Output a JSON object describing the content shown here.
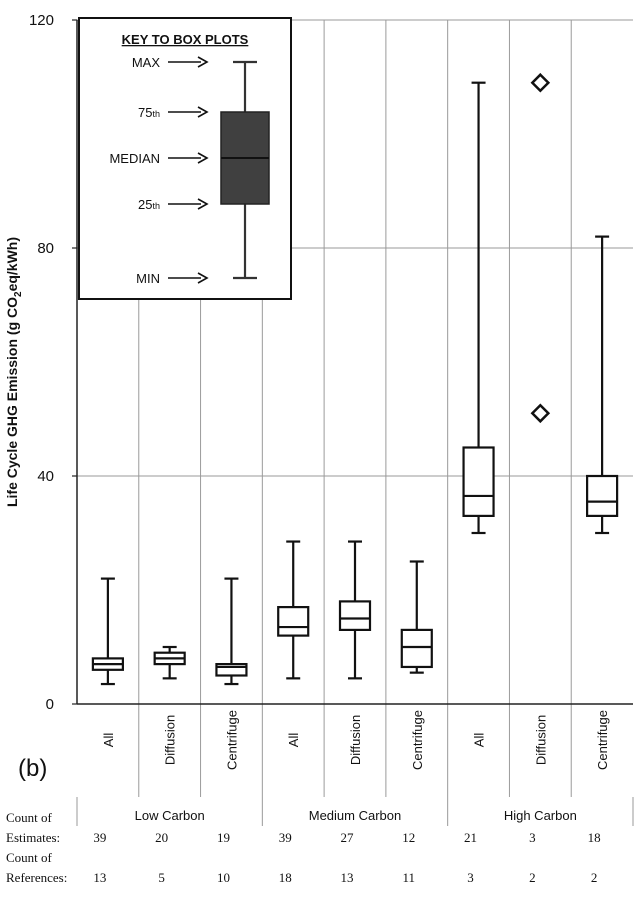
{
  "chart_data": {
    "type": "box",
    "panel_label": "(b)",
    "ylabel_parts": [
      "Life Cycle GHG Emission (g CO",
      "2",
      "eq/kWh)"
    ],
    "ylim": [
      0,
      120
    ],
    "yticks": [
      "0",
      "40",
      "80",
      "120"
    ],
    "grid": true,
    "groups": [
      "Low Carbon",
      "Medium Carbon",
      "High Carbon"
    ],
    "categories": [
      "All",
      "Diffusion",
      "Centrifuge",
      "All",
      "Diffusion",
      "Centrifuge",
      "All",
      "Diffusion",
      "Centrifuge"
    ],
    "boxes": [
      {
        "group": "Low Carbon",
        "category": "All",
        "min": 3.5,
        "q1": 6,
        "median": 7,
        "q3": 8,
        "max": 22
      },
      {
        "group": "Low Carbon",
        "category": "Diffusion",
        "min": 4.5,
        "q1": 7,
        "median": 8,
        "q3": 9,
        "max": 10
      },
      {
        "group": "Low Carbon",
        "category": "Centrifuge",
        "min": 3.5,
        "q1": 5,
        "median": 6.5,
        "q3": 7,
        "max": 22
      },
      {
        "group": "Medium Carbon",
        "category": "All",
        "min": 4.5,
        "q1": 12,
        "median": 13.5,
        "q3": 17,
        "max": 28.5
      },
      {
        "group": "Medium Carbon",
        "category": "Diffusion",
        "min": 4.5,
        "q1": 13,
        "median": 15,
        "q3": 18,
        "max": 28.5
      },
      {
        "group": "Medium Carbon",
        "category": "Centrifuge",
        "min": 5.5,
        "q1": 6.5,
        "median": 10,
        "q3": 13,
        "max": 25
      },
      {
        "group": "High Carbon",
        "category": "All",
        "min": 30,
        "q1": 33,
        "median": 36.5,
        "q3": 45,
        "max": 109
      }
    ],
    "points": [
      {
        "group": "High Carbon",
        "category": "Diffusion",
        "values": [
          109,
          51
        ]
      }
    ],
    "high_centrifuge": {
      "group": "High Carbon",
      "category": "Centrifuge",
      "min": 30,
      "q1": 33,
      "median": 35.5,
      "q3": 40,
      "max": 82
    },
    "key": {
      "title": "KEY TO BOX PLOTS",
      "labels": [
        {
          "text": "MAX",
          "sup": ""
        },
        {
          "text": "75",
          "sup": "th"
        },
        {
          "text": "MEDIAN",
          "sup": ""
        },
        {
          "text": "25",
          "sup": "th"
        },
        {
          "text": "MIN",
          "sup": ""
        }
      ]
    },
    "table": {
      "estimates_label": [
        "Count of",
        "Estimates:"
      ],
      "references_label": [
        "Count of",
        "References:"
      ],
      "estimates": [
        39,
        20,
        19,
        39,
        27,
        12,
        21,
        3,
        18
      ],
      "references": [
        13,
        5,
        10,
        18,
        13,
        11,
        3,
        2,
        2
      ]
    }
  }
}
